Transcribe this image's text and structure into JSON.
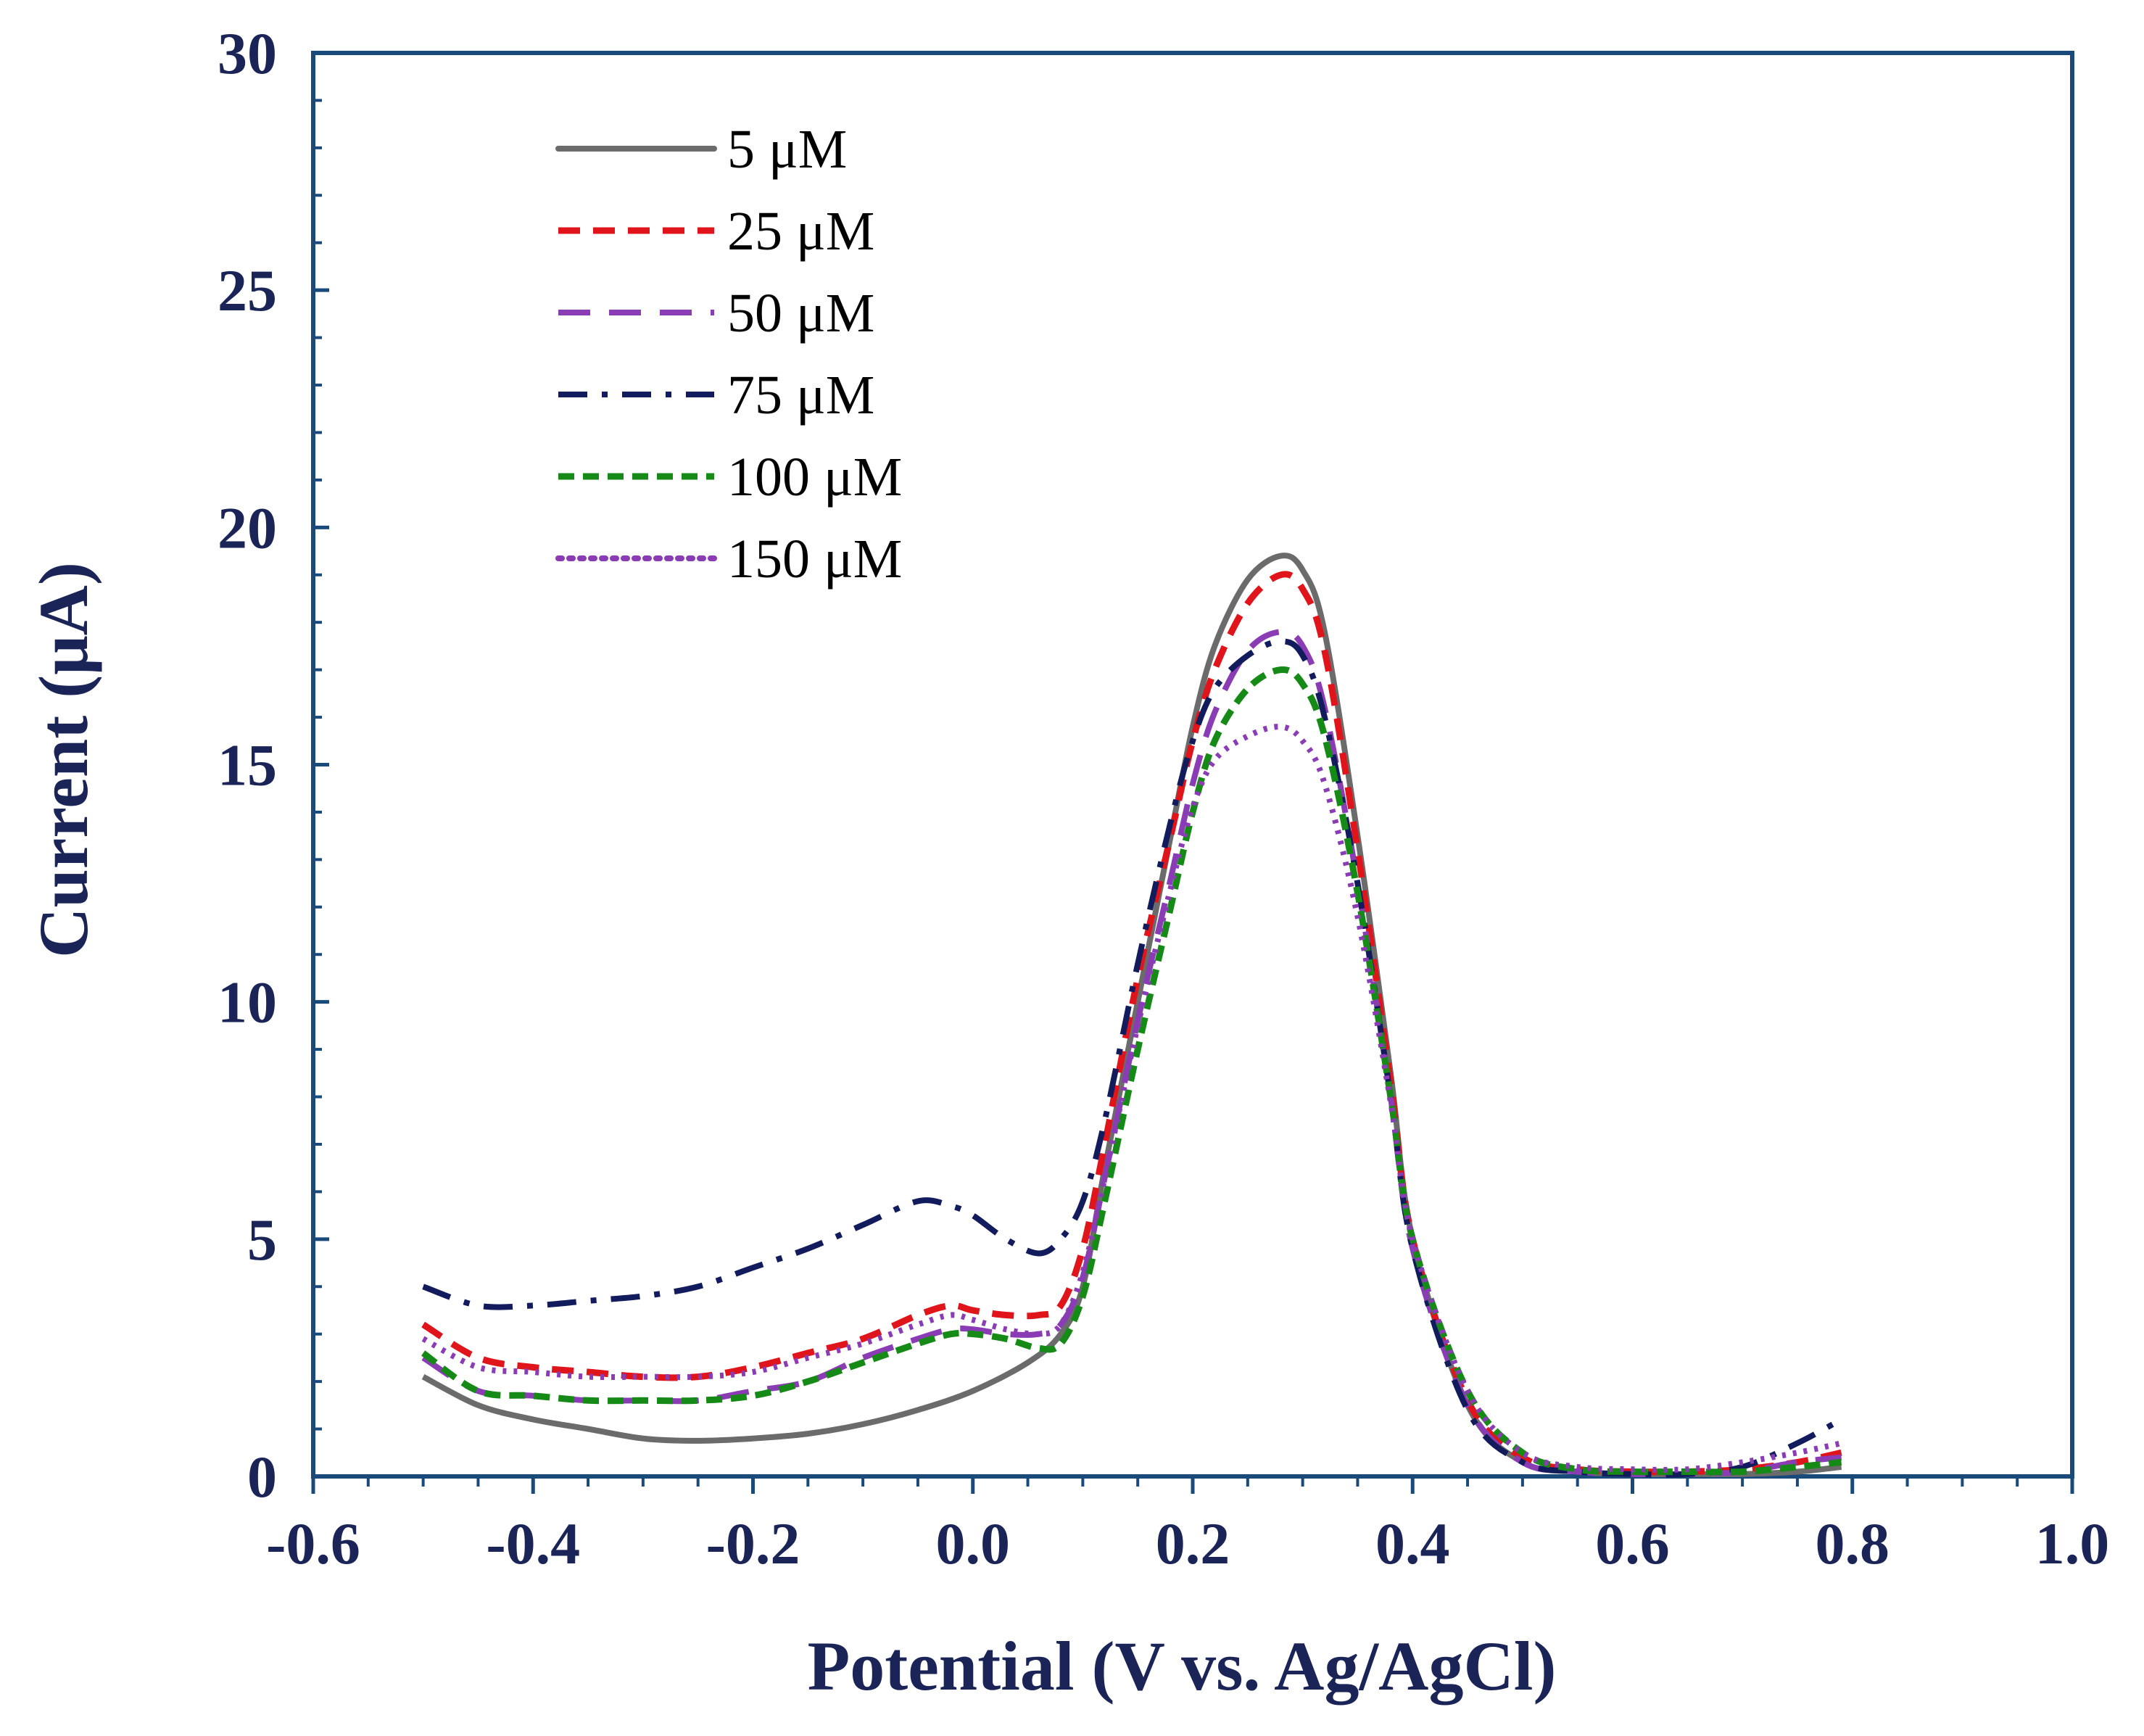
{
  "chart_data": {
    "type": "line",
    "title": "",
    "xlabel": "Potential (V vs. Ag/AgCl)",
    "ylabel": "Current (μA)",
    "xlim": [
      -0.6,
      1.0
    ],
    "ylim": [
      0,
      30
    ],
    "xticks": [
      -0.6,
      -0.4,
      -0.2,
      0.0,
      0.2,
      0.4,
      0.6,
      0.8,
      1.0
    ],
    "xtick_labels": [
      "-0.6",
      "-0.4",
      "-0.2",
      "0.0",
      "0.2",
      "0.4",
      "0.6",
      "0.8",
      "1.0"
    ],
    "yticks": [
      0,
      5,
      10,
      15,
      20,
      25,
      30
    ],
    "ytick_labels": [
      "0",
      "5",
      "10",
      "15",
      "20",
      "25",
      "30"
    ],
    "grid": false,
    "legend_position": "top-left",
    "series": [
      {
        "name": "5 μM",
        "color": "#6b6b6b",
        "style": "solid",
        "x": [
          -0.5,
          -0.45,
          -0.4,
          -0.35,
          -0.3,
          -0.25,
          -0.2,
          -0.15,
          -0.1,
          -0.05,
          0.0,
          0.05,
          0.08,
          0.1,
          0.12,
          0.15,
          0.18,
          0.2,
          0.22,
          0.25,
          0.28,
          0.3,
          0.32,
          0.35,
          0.38,
          0.4,
          0.45,
          0.5,
          0.55,
          0.6,
          0.65,
          0.7,
          0.75,
          0.79
        ],
        "y": [
          2.1,
          1.5,
          1.2,
          1.0,
          0.8,
          0.75,
          0.8,
          0.9,
          1.1,
          1.4,
          1.8,
          2.4,
          3.0,
          4.0,
          6.5,
          10.0,
          13.5,
          15.8,
          17.5,
          18.9,
          19.4,
          19.1,
          17.8,
          13.5,
          8.5,
          5.0,
          1.5,
          0.3,
          0.1,
          0.05,
          0.05,
          0.05,
          0.1,
          0.2
        ]
      },
      {
        "name": "25 μM",
        "color": "#e0151c",
        "style": "dashed",
        "x": [
          -0.5,
          -0.45,
          -0.4,
          -0.35,
          -0.3,
          -0.25,
          -0.2,
          -0.15,
          -0.1,
          -0.05,
          -0.02,
          0.0,
          0.03,
          0.06,
          0.08,
          0.1,
          0.12,
          0.15,
          0.18,
          0.2,
          0.22,
          0.25,
          0.28,
          0.3,
          0.32,
          0.35,
          0.38,
          0.4,
          0.45,
          0.5,
          0.55,
          0.6,
          0.65,
          0.7,
          0.75,
          0.79
        ],
        "y": [
          3.2,
          2.5,
          2.3,
          2.2,
          2.1,
          2.1,
          2.3,
          2.6,
          2.9,
          3.4,
          3.6,
          3.5,
          3.4,
          3.4,
          3.6,
          4.8,
          7.0,
          10.5,
          13.5,
          15.5,
          17.0,
          18.4,
          19.0,
          18.7,
          17.4,
          13.2,
          8.3,
          5.0,
          1.6,
          0.4,
          0.15,
          0.1,
          0.1,
          0.15,
          0.3,
          0.5
        ]
      },
      {
        "name": "50 μM",
        "color": "#8a3cb5",
        "style": "longdash",
        "x": [
          -0.5,
          -0.45,
          -0.4,
          -0.35,
          -0.3,
          -0.25,
          -0.2,
          -0.15,
          -0.1,
          -0.05,
          -0.02,
          0.0,
          0.03,
          0.06,
          0.08,
          0.1,
          0.12,
          0.15,
          0.18,
          0.2,
          0.22,
          0.25,
          0.28,
          0.3,
          0.32,
          0.35,
          0.38,
          0.4,
          0.45,
          0.5,
          0.55,
          0.6,
          0.65,
          0.7,
          0.75,
          0.79
        ],
        "y": [
          2.5,
          1.8,
          1.7,
          1.6,
          1.6,
          1.6,
          1.8,
          2.0,
          2.5,
          2.9,
          3.1,
          3.1,
          3.0,
          3.0,
          3.2,
          4.2,
          6.3,
          9.6,
          12.6,
          14.6,
          16.1,
          17.4,
          17.8,
          17.5,
          16.2,
          12.5,
          8.0,
          4.8,
          1.5,
          0.3,
          0.1,
          0.05,
          0.05,
          0.1,
          0.3,
          0.4
        ]
      },
      {
        "name": "75 μM",
        "color": "#121c5c",
        "style": "dashdot",
        "x": [
          -0.5,
          -0.45,
          -0.4,
          -0.35,
          -0.3,
          -0.25,
          -0.2,
          -0.15,
          -0.1,
          -0.05,
          -0.02,
          0.0,
          0.03,
          0.06,
          0.08,
          0.1,
          0.12,
          0.15,
          0.18,
          0.2,
          0.22,
          0.25,
          0.28,
          0.3,
          0.32,
          0.35,
          0.38,
          0.4,
          0.45,
          0.5,
          0.55,
          0.6,
          0.65,
          0.7,
          0.75,
          0.79
        ],
        "y": [
          4.0,
          3.6,
          3.6,
          3.7,
          3.8,
          4.0,
          4.4,
          4.8,
          5.3,
          5.8,
          5.7,
          5.5,
          5.0,
          4.7,
          5.0,
          5.8,
          7.5,
          10.8,
          13.8,
          15.5,
          16.6,
          17.3,
          17.6,
          17.3,
          16.0,
          12.5,
          8.0,
          4.8,
          1.4,
          0.3,
          0.1,
          0.05,
          0.05,
          0.2,
          0.7,
          1.2
        ]
      },
      {
        "name": "100 μM",
        "color": "#168a16",
        "style": "shortdash",
        "x": [
          -0.5,
          -0.45,
          -0.4,
          -0.35,
          -0.3,
          -0.25,
          -0.2,
          -0.15,
          -0.1,
          -0.05,
          -0.02,
          0.0,
          0.03,
          0.06,
          0.08,
          0.1,
          0.12,
          0.15,
          0.18,
          0.2,
          0.22,
          0.25,
          0.28,
          0.3,
          0.32,
          0.35,
          0.38,
          0.4,
          0.45,
          0.5,
          0.55,
          0.6,
          0.65,
          0.7,
          0.75,
          0.79
        ],
        "y": [
          2.6,
          1.8,
          1.7,
          1.6,
          1.6,
          1.6,
          1.7,
          2.0,
          2.4,
          2.8,
          3.0,
          3.0,
          2.9,
          2.7,
          2.8,
          3.8,
          5.8,
          9.0,
          12.0,
          14.0,
          15.5,
          16.6,
          17.0,
          16.7,
          15.6,
          12.3,
          8.0,
          5.0,
          1.8,
          0.5,
          0.15,
          0.1,
          0.1,
          0.1,
          0.2,
          0.3
        ]
      },
      {
        "name": "150 μM",
        "color": "#8a3cb5",
        "style": "dotted",
        "x": [
          -0.5,
          -0.45,
          -0.4,
          -0.35,
          -0.3,
          -0.25,
          -0.2,
          -0.15,
          -0.1,
          -0.05,
          -0.02,
          0.0,
          0.03,
          0.06,
          0.08,
          0.1,
          0.12,
          0.15,
          0.18,
          0.2,
          0.22,
          0.25,
          0.28,
          0.3,
          0.32,
          0.35,
          0.38,
          0.4,
          0.45,
          0.5,
          0.55,
          0.6,
          0.65,
          0.7,
          0.75,
          0.79
        ],
        "y": [
          2.9,
          2.3,
          2.2,
          2.1,
          2.1,
          2.1,
          2.2,
          2.5,
          2.8,
          3.2,
          3.4,
          3.3,
          3.1,
          3.0,
          3.2,
          4.3,
          6.3,
          9.5,
          12.4,
          14.1,
          15.1,
          15.6,
          15.8,
          15.5,
          14.6,
          11.8,
          7.9,
          5.0,
          1.8,
          0.5,
          0.2,
          0.15,
          0.15,
          0.3,
          0.5,
          0.7
        ]
      }
    ]
  },
  "colors": {
    "axis": "#1a4a7a",
    "label_text": "#1a2456"
  }
}
